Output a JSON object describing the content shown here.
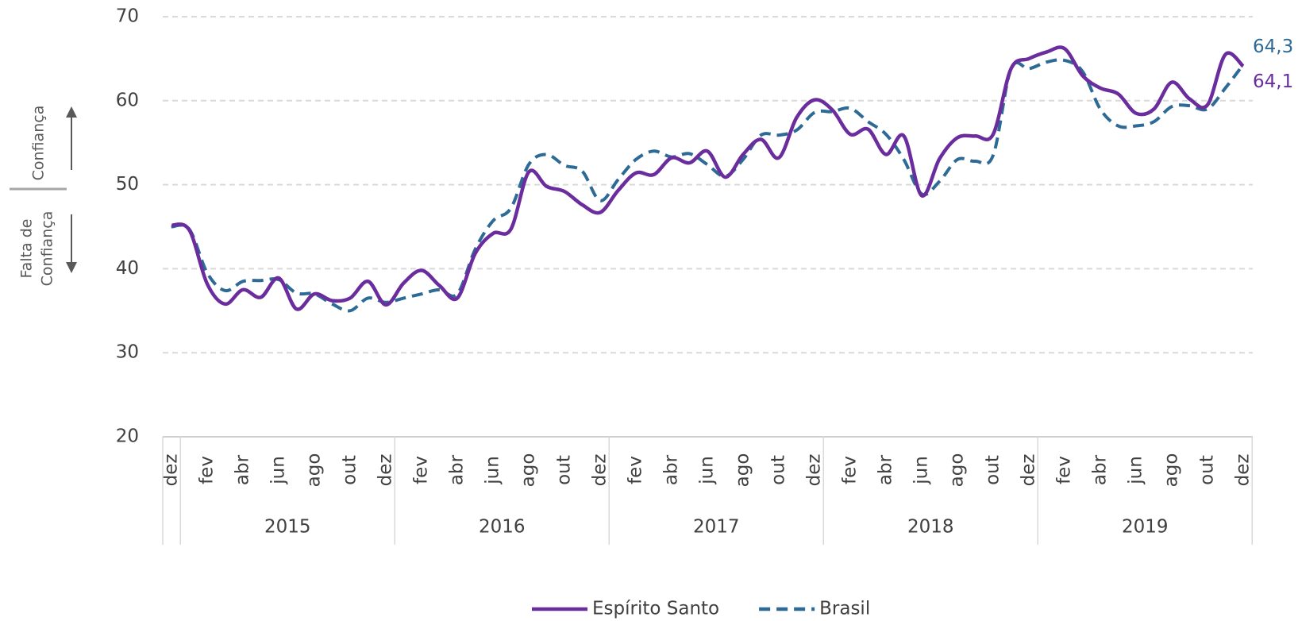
{
  "chart_data": {
    "type": "line",
    "annotations": {
      "up": "Confiança",
      "down": [
        "Falta de",
        "Confiança"
      ]
    },
    "categories": [
      "dez",
      null,
      "fev",
      null,
      "abr",
      null,
      "jun",
      null,
      "ago",
      null,
      "out",
      null,
      "dez",
      null,
      "fev",
      null,
      "abr",
      null,
      "jun",
      null,
      "ago",
      null,
      "out",
      null,
      "dez",
      null,
      "fev",
      null,
      "abr",
      null,
      "jun",
      null,
      "ago",
      null,
      "out",
      null,
      "dez",
      null,
      "fev",
      null,
      "abr",
      null,
      "jun",
      null,
      "ago",
      null,
      "out",
      null,
      "dez",
      null,
      "fev",
      null,
      "abr",
      null,
      "jun",
      null,
      "ago",
      null,
      "out",
      null,
      "dez"
    ],
    "groups": [
      "2015",
      "2016",
      "2017",
      "2018",
      "2019"
    ],
    "series": [
      {
        "name": "Espírito Santo",
        "color": "#6b2d9e",
        "dash": false,
        "values": [
          45.2,
          44.6,
          38.2,
          35.8,
          37.5,
          36.6,
          38.9,
          35.2,
          37.0,
          36.2,
          36.5,
          38.5,
          35.7,
          38.3,
          39.8,
          38.0,
          36.5,
          41.8,
          44.2,
          44.7,
          51.5,
          49.8,
          49.2,
          47.6,
          46.7,
          49.3,
          51.4,
          51.2,
          53.2,
          52.6,
          54.0,
          50.9,
          53.6,
          55.4,
          53.2,
          58.0,
          60.1,
          58.9,
          56.0,
          56.6,
          53.6,
          55.8,
          48.7,
          53.1,
          55.6,
          55.8,
          56.0,
          63.8,
          65.0,
          65.8,
          66.2,
          63.0,
          61.5,
          60.8,
          58.5,
          59.0,
          62.2,
          60.2,
          59.5,
          65.5,
          64.1
        ],
        "value_labels": [
          null,
          null,
          null,
          null,
          null,
          null,
          null,
          null,
          null,
          null,
          null,
          null,
          null,
          null,
          null,
          null,
          null,
          null,
          null,
          null,
          null,
          null,
          null,
          null,
          null,
          null,
          null,
          null,
          null,
          null,
          null,
          null,
          null,
          null,
          null,
          null,
          null,
          null,
          null,
          null,
          null,
          null,
          null,
          null,
          null,
          null,
          null,
          null,
          null,
          null,
          null,
          null,
          null,
          null,
          null,
          null,
          null,
          null,
          null,
          null,
          "64,1"
        ]
      },
      {
        "name": "Brasil",
        "color": "#2e6a96",
        "dash": true,
        "values": [
          45.0,
          44.7,
          39.5,
          37.4,
          38.5,
          38.6,
          38.7,
          37.1,
          37.0,
          35.8,
          35.0,
          36.5,
          36.0,
          36.5,
          37.0,
          37.5,
          37.0,
          42.3,
          45.7,
          47.2,
          52.4,
          53.6,
          52.3,
          51.6,
          48.1,
          50.6,
          53.0,
          54.0,
          53.3,
          53.7,
          52.4,
          51.0,
          53.0,
          55.9,
          55.9,
          56.5,
          58.6,
          58.7,
          59.1,
          57.5,
          56.0,
          53.0,
          48.9,
          50.4,
          53.0,
          52.8,
          53.5,
          63.8,
          63.8,
          64.6,
          64.8,
          63.5,
          59.0,
          57.0,
          57.0,
          57.5,
          59.3,
          59.4,
          59.0,
          61.5,
          64.3
        ],
        "value_labels": [
          null,
          null,
          null,
          null,
          null,
          null,
          null,
          null,
          null,
          null,
          null,
          null,
          null,
          null,
          null,
          null,
          null,
          null,
          null,
          null,
          null,
          null,
          null,
          null,
          null,
          null,
          null,
          null,
          null,
          null,
          null,
          null,
          null,
          null,
          null,
          null,
          null,
          null,
          null,
          null,
          null,
          null,
          null,
          null,
          null,
          null,
          null,
          null,
          null,
          null,
          null,
          null,
          null,
          null,
          null,
          null,
          null,
          null,
          null,
          null,
          "64,3"
        ]
      }
    ],
    "ylim": [
      20,
      70
    ],
    "yticks": [
      20,
      30,
      40,
      50,
      60,
      70
    ],
    "grid": true,
    "legend": "bottom"
  }
}
